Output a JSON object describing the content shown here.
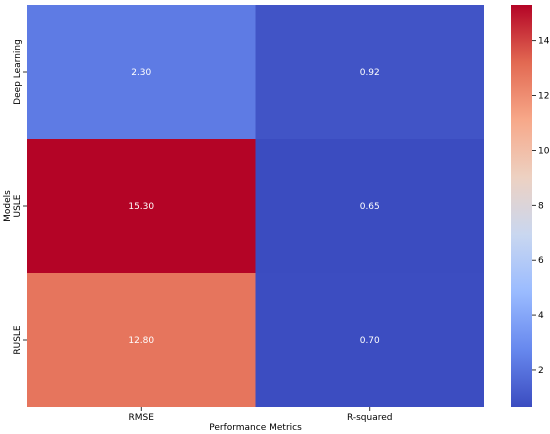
{
  "chart_data": {
    "type": "heatmap",
    "title": "",
    "xlabel": "Performance Metrics",
    "ylabel": "Models",
    "x_categories": [
      "RMSE",
      "R-squared"
    ],
    "y_categories": [
      "Deep Learning",
      "USLE",
      "RUSLE"
    ],
    "values": [
      [
        2.3,
        0.92
      ],
      [
        15.3,
        0.65
      ],
      [
        12.8,
        0.7
      ]
    ],
    "annotations": [
      [
        "2.30",
        "0.92"
      ],
      [
        "15.30",
        "0.65"
      ],
      [
        "12.80",
        "0.70"
      ]
    ],
    "colormap": "coolwarm",
    "colormap_stops": [
      "#3b4cc0",
      "#6788ee",
      "#9abbff",
      "#c9d7f0",
      "#edd1c2",
      "#f7a889",
      "#e26952",
      "#b40426"
    ],
    "vmin": 0.65,
    "vmax": 15.3,
    "colorbar_ticks": [
      2,
      4,
      6,
      8,
      10,
      12,
      14
    ],
    "colorbar_tick_labels": [
      "2",
      "4",
      "6",
      "8",
      "10",
      "12",
      "14"
    ],
    "annotation_text_color": "#ffffff",
    "grid": false,
    "legend": "colorbar-right"
  }
}
